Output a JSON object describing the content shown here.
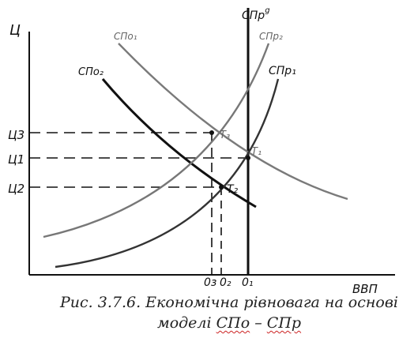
{
  "axes": {
    "y_label": "Ц",
    "x_label": "ВВП",
    "y_ticks": [
      "Ц3",
      "Ц1",
      "Ц2"
    ],
    "x_ticks": [
      "0з",
      "0₂",
      "0₁"
    ]
  },
  "curves": {
    "spr_vertical": "СПр",
    "spr_vertical_sup": "g",
    "spr1": "СПр₁",
    "spr2": "СПр₂",
    "spo1": "СПо₁",
    "spo2": "СПо₂"
  },
  "points": {
    "t1": "Т₁",
    "t2": "Т₂",
    "t3": "Т₃"
  },
  "caption": {
    "line1": "Рис. 3.7.6. Економічна рівновага на основі",
    "line2_prefix": "моделі ",
    "line2_a": "СПо",
    "line2_sep": " – ",
    "line2_b": "СПр"
  },
  "colors": {
    "ink": "#111111",
    "gray_curve": "#7a7a7a",
    "caption_underline": "#cc2222"
  }
}
